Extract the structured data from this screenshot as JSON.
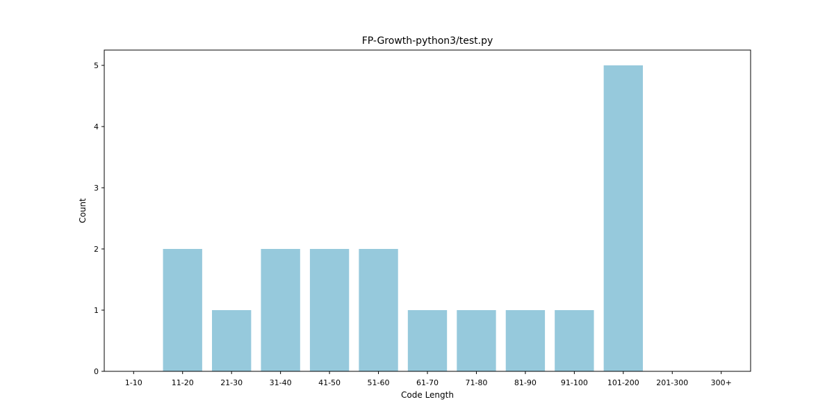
{
  "chart_data": {
    "type": "bar",
    "title": "FP-Growth-python3/test.py",
    "xlabel": "Code Length",
    "ylabel": "Count",
    "categories": [
      "1-10",
      "11-20",
      "21-30",
      "31-40",
      "41-50",
      "51-60",
      "61-70",
      "71-80",
      "81-90",
      "91-100",
      "101-200",
      "201-300",
      "300+"
    ],
    "values": [
      0,
      2,
      1,
      2,
      2,
      2,
      1,
      1,
      1,
      1,
      5,
      0,
      0
    ],
    "ylim": [
      0,
      5.25
    ],
    "yticks": [
      0,
      1,
      2,
      3,
      4,
      5
    ],
    "bar_color": "#96c9dc",
    "grid": false,
    "legend": "none"
  }
}
